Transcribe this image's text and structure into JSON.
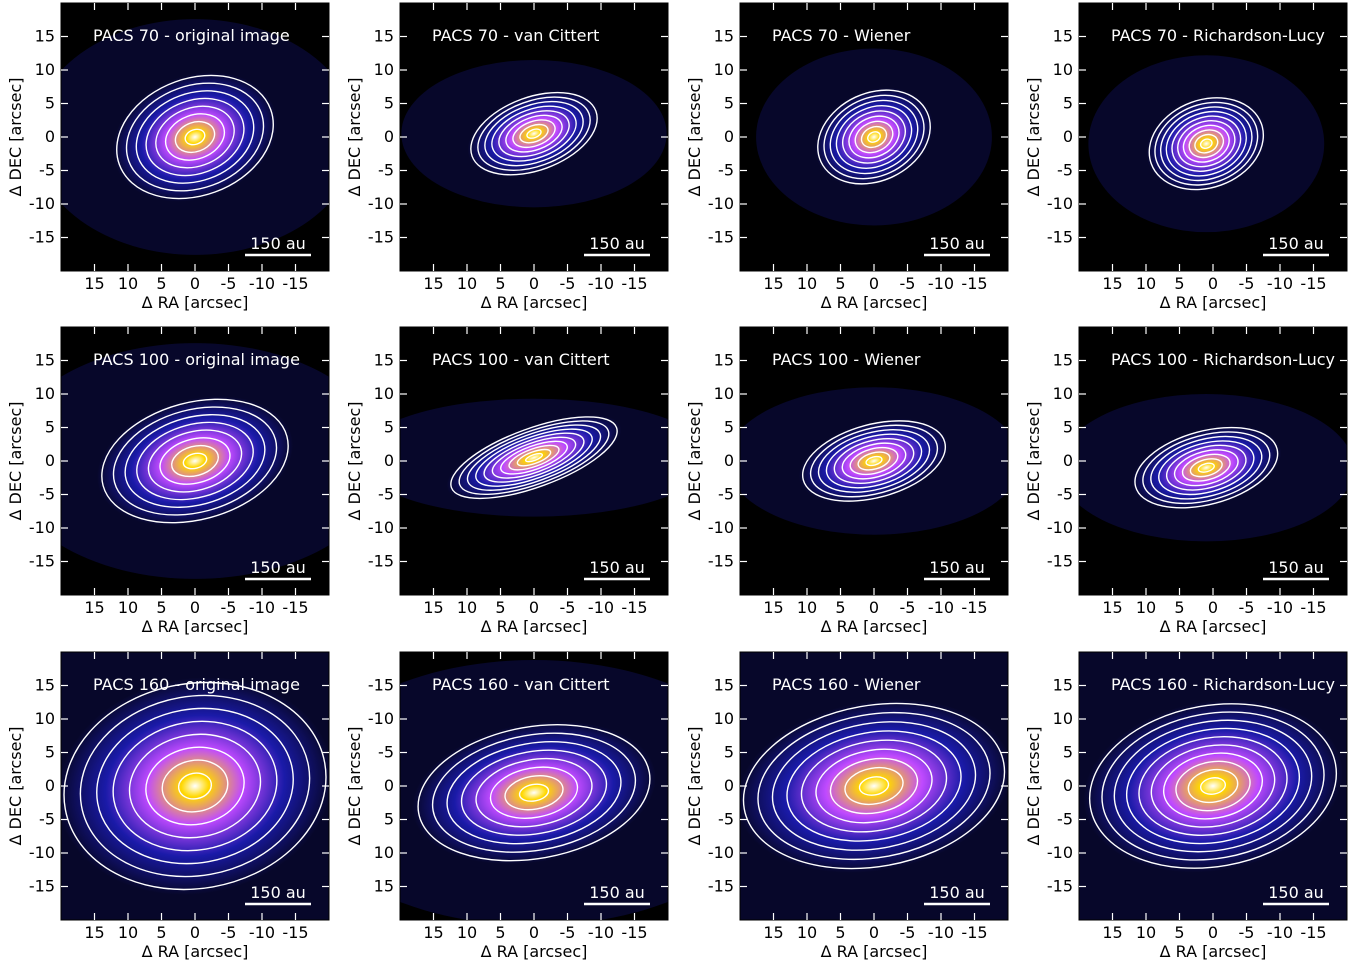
{
  "chart_data": {
    "type": "heatmap",
    "description_grid": "3x4 panels of contour images",
    "xlabel": "Δ RA [arcsec]",
    "ylabel": "Δ DEC [arcsec]",
    "xticks": [
      15,
      10,
      5,
      0,
      -5,
      -10,
      -15
    ],
    "yticks": [
      15,
      10,
      5,
      0,
      -5,
      -10,
      -15
    ],
    "yticks_flipped": [
      -15,
      -10,
      -5,
      0,
      5,
      10,
      15
    ],
    "xlim": [
      20,
      -20
    ],
    "ylim": [
      -20,
      20
    ],
    "scalebar_label": "150 au",
    "colors": {
      "background": "#000000",
      "low": "#1a1aa8",
      "mid": "#c04aff",
      "high": "#ffd800",
      "peak": "#ffffff",
      "contour": "#ffffff"
    },
    "panels": [
      {
        "title": "PACS 70 - original image",
        "band": 70,
        "method": "original image",
        "peak": [
          0,
          0
        ],
        "extent": [
          11,
          8
        ],
        "angle": -20,
        "levels": 8,
        "flip_y": false
      },
      {
        "title": "PACS 70 - van Cittert",
        "band": 70,
        "method": "van Cittert",
        "peak": [
          0,
          0.5
        ],
        "extent": [
          9,
          5
        ],
        "angle": -20,
        "levels": 9,
        "flip_y": false
      },
      {
        "title": "PACS 70 - Wiener",
        "band": 70,
        "method": "Wiener",
        "peak": [
          0,
          0
        ],
        "extent": [
          8,
          6
        ],
        "angle": -25,
        "levels": 9,
        "flip_y": false
      },
      {
        "title": "PACS 70 - Richardson-Lucy",
        "band": 70,
        "method": "Richardson-Lucy",
        "peak": [
          1,
          -1
        ],
        "extent": [
          8,
          6
        ],
        "angle": -20,
        "levels": 10,
        "flip_y": false
      },
      {
        "title": "PACS 100 - original image",
        "band": 100,
        "method": "original image",
        "peak": [
          0,
          0
        ],
        "extent": [
          13,
          8
        ],
        "angle": -15,
        "levels": 8,
        "flip_y": false
      },
      {
        "title": "PACS 100 - van Cittert",
        "band": 100,
        "method": "van Cittert",
        "peak": [
          0,
          0.5
        ],
        "extent": [
          12,
          4
        ],
        "angle": -20,
        "levels": 10,
        "flip_y": false
      },
      {
        "title": "PACS 100 - Wiener",
        "band": 100,
        "method": "Wiener",
        "peak": [
          0,
          0
        ],
        "extent": [
          10,
          5
        ],
        "angle": -15,
        "levels": 9,
        "flip_y": false
      },
      {
        "title": "PACS 100 - Richardson-Lucy",
        "band": 100,
        "method": "Richardson-Lucy",
        "peak": [
          1,
          -1
        ],
        "extent": [
          10,
          5
        ],
        "angle": -15,
        "levels": 9,
        "flip_y": false
      },
      {
        "title": "PACS 160 - original image",
        "band": 160,
        "method": "original image",
        "peak": [
          0,
          0
        ],
        "extent": [
          18,
          14
        ],
        "angle": -10,
        "levels": 8,
        "flip_y": false
      },
      {
        "title": "PACS 160 - van Cittert",
        "band": 160,
        "method": "van Cittert",
        "peak": [
          0,
          -1
        ],
        "extent": [
          16,
          9
        ],
        "angle": -10,
        "levels": 8,
        "flip_y": true
      },
      {
        "title": "PACS 160 - Wiener",
        "band": 160,
        "method": "Wiener",
        "peak": [
          0,
          0
        ],
        "extent": [
          18,
          11
        ],
        "angle": -10,
        "levels": 9,
        "flip_y": false
      },
      {
        "title": "PACS 160 - Richardson-Lucy",
        "band": 160,
        "method": "Richardson-Lucy",
        "peak": [
          0,
          0
        ],
        "extent": [
          17,
          11
        ],
        "angle": -10,
        "levels": 10,
        "flip_y": false
      }
    ]
  }
}
